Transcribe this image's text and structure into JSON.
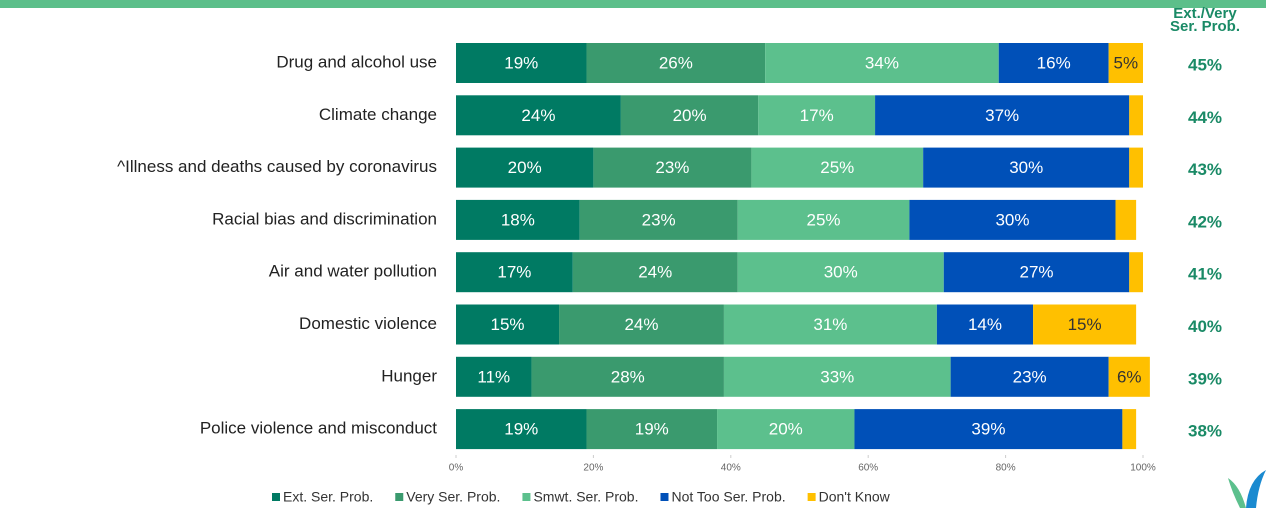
{
  "chart_data": {
    "type": "stacked-bar-horizontal",
    "categories": [
      "Drug and alcohol use",
      "Climate change",
      "^Illness and deaths caused by coronavirus",
      "Racial bias and discrimination",
      "Air and water pollution",
      "Domestic violence",
      "Hunger",
      "Police violence and misconduct"
    ],
    "series": [
      {
        "name": "Ext. Ser. Prob.",
        "color": "#007a63",
        "values": [
          19,
          24,
          20,
          18,
          17,
          15,
          11,
          19
        ],
        "value_labels": [
          "19%",
          "24%",
          "20%",
          "18%",
          "17%",
          "15%",
          "11%",
          "19%"
        ]
      },
      {
        "name": "Very Ser. Prob.",
        "color": "#3a9a6e",
        "values": [
          26,
          20,
          23,
          23,
          24,
          24,
          28,
          19
        ],
        "value_labels": [
          "26%",
          "20%",
          "23%",
          "23%",
          "24%",
          "24%",
          "28%",
          "19%"
        ]
      },
      {
        "name": "Smwt. Ser. Prob.",
        "color": "#5cc08d",
        "values": [
          34,
          17,
          25,
          25,
          30,
          31,
          33,
          20
        ],
        "value_labels": [
          "34%",
          "17%",
          "25%",
          "25%",
          "30%",
          "31%",
          "33%",
          "20%"
        ]
      },
      {
        "name": "Not Too Ser. Prob.",
        "color": "#0050b8",
        "values": [
          16,
          37,
          30,
          30,
          27,
          14,
          23,
          39
        ],
        "value_labels": [
          "16%",
          "37%",
          "30%",
          "30%",
          "27%",
          "14%",
          "23%",
          "39%"
        ]
      },
      {
        "name": "Don't Know",
        "color": "#ffc000",
        "values": [
          5,
          2,
          2,
          3,
          2,
          15,
          6,
          2
        ],
        "value_labels": [
          "5%",
          null,
          null,
          null,
          null,
          "15%",
          "6%",
          null
        ]
      }
    ],
    "xlim": [
      0,
      100
    ],
    "xticks": [
      {
        "value": 0,
        "label": "0%"
      },
      {
        "value": 20,
        "label": "20%"
      },
      {
        "value": 40,
        "label": "40%"
      },
      {
        "value": 60,
        "label": "60%"
      },
      {
        "value": 80,
        "label": "80%"
      },
      {
        "value": 100,
        "label": "100%"
      }
    ],
    "legend": "bottom",
    "net_header": [
      "Ext./Very",
      "Ser. Prob."
    ],
    "net_values": [
      45,
      44,
      43,
      42,
      41,
      40,
      39,
      38
    ],
    "net_value_labels": [
      "45%",
      "44%",
      "43%",
      "42%",
      "41%",
      "40%",
      "39%",
      "38%"
    ]
  }
}
